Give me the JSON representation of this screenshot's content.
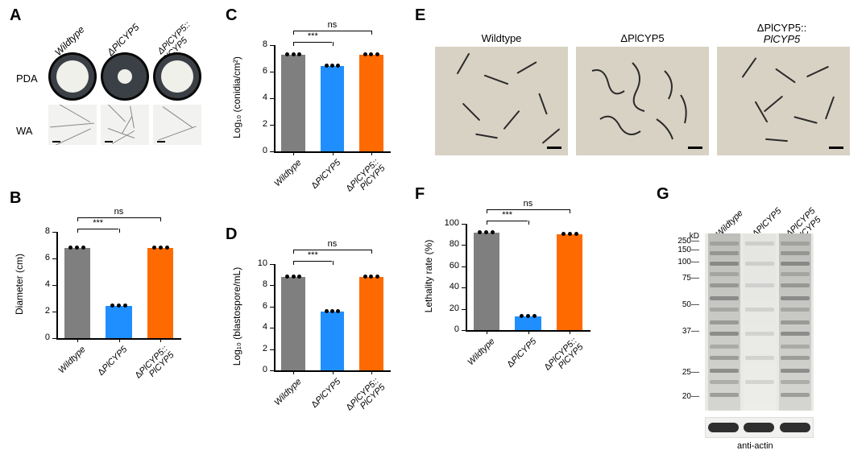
{
  "panel_labels": {
    "A": "A",
    "B": "B",
    "C": "C",
    "D": "D",
    "E": "E",
    "F": "F",
    "G": "G"
  },
  "strains": {
    "wt": "Wildtype",
    "ko": "ΔPlCYP5",
    "comp": "ΔPlCYP5::PlCYP5",
    "comp_2line_a": "ΔPlCYP5::",
    "comp_2line_b": "PlCYP5"
  },
  "panelA": {
    "row1": "PDA",
    "row2": "WA"
  },
  "colors": {
    "wt": "#7f7f7f",
    "ko": "#1f8fff",
    "comp": "#ff6a00",
    "axis": "#000000",
    "bg": "#ffffff",
    "micro_bg": "#d8d2c4",
    "gel_bg": "#e9e9e7"
  },
  "chartB": {
    "ylabel": "Diameter (cm)",
    "ylim": [
      0,
      8
    ],
    "ytick_step": 2,
    "values": {
      "wt": 6.8,
      "ko": 2.4,
      "comp": 6.8
    },
    "sig": {
      "wt_ko": "***",
      "wt_comp": "ns"
    },
    "bar_width_rel": 0.6
  },
  "chartC": {
    "ylabel": "Log₁₀ (conidia/cm²)",
    "ylim": [
      0,
      8
    ],
    "ytick_step": 2,
    "values": {
      "wt": 7.3,
      "ko": 6.4,
      "comp": 7.3
    },
    "sig": {
      "wt_ko": "***",
      "wt_comp": "ns"
    }
  },
  "chartD": {
    "ylabel": "Log₁₀ (blastospore/mL)",
    "ylim": [
      0,
      10
    ],
    "ytick_step": 2,
    "values": {
      "wt": 8.8,
      "ko": 5.5,
      "comp": 8.8
    },
    "sig": {
      "wt_ko": "***",
      "wt_comp": "ns"
    }
  },
  "chartF": {
    "ylabel": "Lethality rate (%)",
    "ylim": [
      0,
      100
    ],
    "ytick_step": 20,
    "values": {
      "wt": 92,
      "ko": 13,
      "comp": 90
    },
    "sig": {
      "wt_ko": "***",
      "wt_comp": "ns"
    }
  },
  "panelG": {
    "kd_header": "kD",
    "markers": [
      "250",
      "150",
      "100",
      "75",
      "50",
      "37",
      "25",
      "20"
    ],
    "actin_label": "anti-actin",
    "comp_2line_a": "ΔPlCYP5",
    "comp_2line_b": "::PlCYP5"
  }
}
